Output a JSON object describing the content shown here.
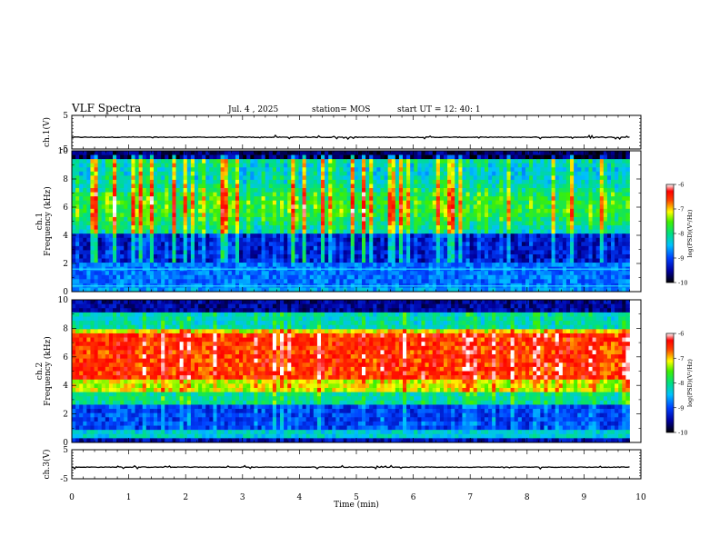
{
  "header": {
    "title": "VLF Spectra",
    "date": "Jul. 4 , 2025",
    "station": "station= MOS",
    "start": "start UT =   12: 40: 1"
  },
  "chart_data": [
    {
      "type": "line",
      "panel": "ch1-voltage",
      "ylabel": "ch.1(V)",
      "ylim": [
        -5,
        5
      ],
      "y_ticks": [
        "5",
        "-5"
      ],
      "xlim": [
        0,
        10
      ],
      "x_end_min": 9.8,
      "level": -1.5
    },
    {
      "type": "heatmap",
      "panel": "ch1-spectrogram",
      "ylabel": "ch.1\nFrequency (kHz)",
      "ylim": [
        0,
        10
      ],
      "y_ticks": [
        "0",
        "2",
        "4",
        "6",
        "8",
        "10"
      ],
      "xlim": [
        0,
        10
      ],
      "x_end_min": 9.8,
      "colorbar": {
        "label": "log(PSD)(V²/Hz)",
        "ticks": [
          "-6",
          "-7",
          "-8",
          "-9",
          "-10"
        ],
        "range": [
          -10,
          -6
        ]
      },
      "description": "broadband impulsive vertical streaks (green/yellow/red) over 4–10 kHz, quiet dark blue band 2–4 kHz, strong lines near 0.5 and 1.5 kHz"
    },
    {
      "type": "heatmap",
      "panel": "ch2-spectrogram",
      "ylabel": "ch.2\nFrequency (kHz)",
      "ylim": [
        0,
        10
      ],
      "y_ticks": [
        "0",
        "2",
        "4",
        "6",
        "8",
        "10"
      ],
      "xlim": [
        0,
        10
      ],
      "x_end_min": 9.8,
      "colorbar": {
        "label": "log(PSD)(V²/Hz)",
        "ticks": [
          "-6",
          "-7",
          "-8",
          "-9",
          "-10"
        ],
        "range": [
          -10,
          -6
        ]
      },
      "description": "persistent intense band (red) centered near 5.5–7 kHz, green/yellow 3–9 kHz, dark blue above 9 kHz and around 1–2.5 kHz"
    },
    {
      "type": "line",
      "panel": "ch3-voltage",
      "ylabel": "ch.3(V)",
      "ylim": [
        -5,
        5
      ],
      "y_ticks": [
        "5",
        "-5"
      ],
      "xlim": [
        0,
        10
      ],
      "x_end_min": 9.8,
      "level": -1.0,
      "x_ticks": [
        "0",
        "1",
        "2",
        "3",
        "4",
        "5",
        "6",
        "7",
        "8",
        "9",
        "10"
      ],
      "xlabel": "Time (min)"
    }
  ]
}
